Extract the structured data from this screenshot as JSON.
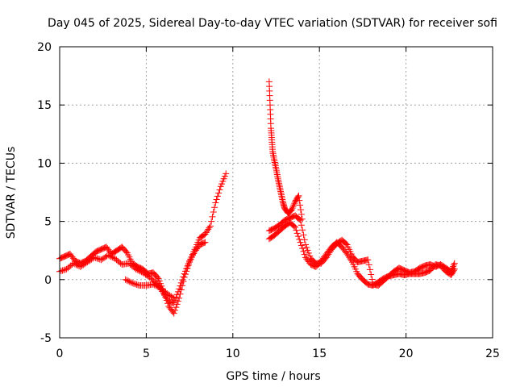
{
  "chart_data": {
    "type": "scatter",
    "title": "Day 045 of 2025, Sidereal Day-to-day VTEC variation (SDTVAR) for receiver sofi",
    "xlabel": "GPS time / hours",
    "ylabel": "SDTVAR / TECUs",
    "xlim": [
      0,
      25
    ],
    "ylim": [
      -5,
      20
    ],
    "xticks": [
      0,
      5,
      10,
      15,
      20,
      25
    ],
    "yticks": [
      -5,
      0,
      5,
      10,
      15,
      20
    ],
    "grid": true,
    "marker": "+",
    "color": "#ff0000",
    "series": [
      {
        "name": "SDTVAR",
        "segments": [
          {
            "x": [
              0.0,
              0.3,
              0.6,
              0.9,
              1.2,
              1.5,
              1.8,
              2.1,
              2.4,
              2.7,
              3.0,
              3.3,
              3.6,
              3.9,
              4.2,
              4.5,
              4.8,
              5.1,
              5.4,
              5.7,
              6.0,
              6.3,
              6.6,
              6.9,
              7.2,
              7.5,
              7.8,
              8.1,
              8.4,
              8.7,
              9.0,
              9.3,
              9.6
            ],
            "y": [
              1.8,
              2.0,
              2.2,
              1.6,
              1.4,
              1.6,
              2.0,
              2.4,
              2.6,
              2.8,
              2.2,
              2.5,
              2.8,
              2.3,
              1.4,
              1.1,
              0.9,
              0.5,
              0.6,
              0.1,
              -1.0,
              -2.3,
              -2.9,
              -1.6,
              0.2,
              1.5,
              2.6,
              3.6,
              3.9,
              4.6,
              6.6,
              8.0,
              9.1
            ]
          },
          {
            "x": [
              0.0,
              0.4,
              0.8,
              1.2,
              1.6,
              2.0,
              2.4,
              2.8,
              3.2,
              3.6,
              4.0,
              4.4,
              4.8,
              5.2,
              5.6,
              6.0,
              6.3,
              6.6,
              6.9,
              7.2,
              7.5,
              7.8,
              8.1,
              8.4
            ],
            "y": [
              0.7,
              0.9,
              1.4,
              1.1,
              1.5,
              1.9,
              1.7,
              2.1,
              1.8,
              1.3,
              1.4,
              0.9,
              0.6,
              0.2,
              -0.3,
              -1.2,
              -1.9,
              -2.0,
              -0.8,
              0.5,
              1.6,
              2.4,
              3.0,
              3.2
            ]
          },
          {
            "x": [
              3.8,
              4.2,
              4.6,
              5.0,
              5.4,
              5.8,
              6.2,
              6.6
            ],
            "y": [
              0.0,
              -0.3,
              -0.5,
              -0.5,
              -0.4,
              -0.7,
              -1.2,
              -1.6
            ]
          },
          {
            "x": [
              12.1,
              12.15,
              12.2,
              12.25,
              12.3,
              12.4,
              12.5,
              12.6,
              12.7,
              12.8,
              12.9,
              13.0,
              13.2,
              13.4,
              13.6,
              13.8,
              14.0
            ],
            "y": [
              17.0,
              15.0,
              13.0,
              12.0,
              11.0,
              10.2,
              9.5,
              8.7,
              8.0,
              7.3,
              6.6,
              6.1,
              5.7,
              6.0,
              6.7,
              7.2,
              5.2
            ]
          },
          {
            "x": [
              12.1,
              12.4,
              12.7,
              13.0,
              13.3,
              13.6,
              13.9,
              14.2,
              14.5,
              14.8,
              15.1,
              15.4,
              15.7,
              16.0,
              16.3,
              16.6,
              16.9,
              17.2,
              17.5,
              17.8,
              18.1,
              18.4,
              18.7,
              19.0,
              19.3,
              19.6,
              19.9,
              20.2,
              20.5,
              20.8,
              21.1,
              21.4,
              21.7,
              22.0,
              22.3,
              22.6,
              22.8
            ],
            "y": [
              4.2,
              4.4,
              4.7,
              5.1,
              5.3,
              5.5,
              5.1,
              3.0,
              1.8,
              1.4,
              1.4,
              1.9,
              2.6,
              3.1,
              3.4,
              3.0,
              2.0,
              1.5,
              1.6,
              1.7,
              -0.4,
              -0.5,
              -0.1,
              0.3,
              0.7,
              1.0,
              0.8,
              0.6,
              0.7,
              1.0,
              1.2,
              1.3,
              1.1,
              1.3,
              1.0,
              0.7,
              1.4
            ]
          },
          {
            "x": [
              12.1,
              12.4,
              12.7,
              13.0,
              13.3,
              13.6,
              13.9,
              14.2,
              14.5,
              14.8,
              15.1,
              15.4,
              15.7,
              16.0,
              16.3,
              16.6,
              16.9,
              17.2,
              17.5,
              17.8,
              18.1,
              18.4,
              18.7,
              19.0,
              19.3,
              19.6,
              19.9,
              20.2,
              20.5,
              20.8,
              21.1,
              21.4,
              21.7,
              22.0,
              22.3,
              22.6,
              22.8
            ],
            "y": [
              3.5,
              3.8,
              4.2,
              4.6,
              4.9,
              4.5,
              3.2,
              1.9,
              1.3,
              1.1,
              1.6,
              2.2,
              2.8,
              3.2,
              2.8,
              2.2,
              1.5,
              0.5,
              0.0,
              -0.4,
              -0.5,
              -0.2,
              0.1,
              0.3,
              0.4,
              0.5,
              0.4,
              0.5,
              0.5,
              0.5,
              0.6,
              0.8,
              1.3,
              1.2,
              0.7,
              0.4,
              0.9
            ]
          }
        ]
      }
    ]
  }
}
